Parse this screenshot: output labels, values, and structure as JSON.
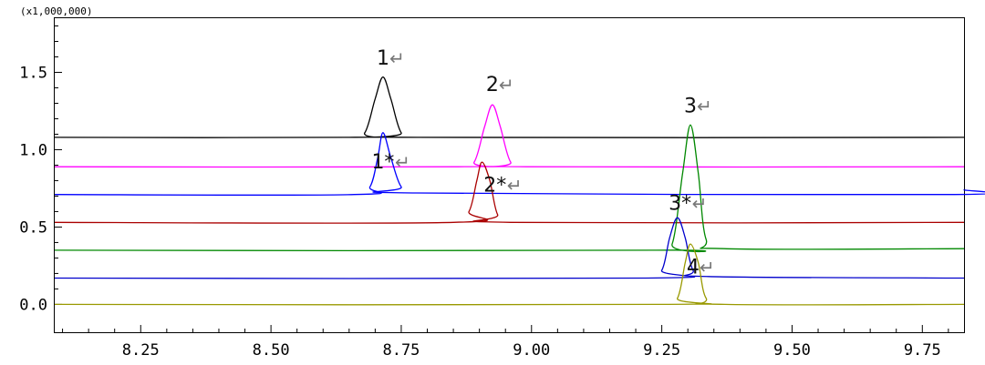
{
  "chart_data": {
    "type": "line",
    "title": "",
    "xlabel": "",
    "ylabel": "",
    "y_multiplier_label": "(x1,000,000)",
    "xlim": [
      8.085,
      9.83
    ],
    "ylim": [
      -0.18,
      1.85
    ],
    "x_ticks": [
      8.25,
      8.5,
      8.75,
      9.0,
      9.25,
      9.5,
      9.75
    ],
    "x_tick_labels": [
      "8.25",
      "8.50",
      "8.75",
      "9.00",
      "9.25",
      "9.50",
      "9.75"
    ],
    "y_ticks": [
      0.0,
      0.5,
      1.0,
      1.5
    ],
    "y_tick_labels": [
      "0.0",
      "0.5",
      "1.0",
      "1.5"
    ],
    "grid": false,
    "legend": "none",
    "series": [
      {
        "color": "#000000",
        "x": [
          8.085,
          8.65,
          8.68,
          8.7,
          8.715,
          8.73,
          8.75,
          8.78,
          9.83
        ],
        "y": [
          1.08,
          1.08,
          1.11,
          1.33,
          1.47,
          1.33,
          1.11,
          1.08,
          1.08
        ]
      },
      {
        "color": "#ff00ff",
        "x": [
          8.085,
          8.86,
          8.89,
          8.91,
          8.925,
          8.94,
          8.96,
          8.99,
          9.83
        ],
        "y": [
          0.89,
          0.89,
          0.92,
          1.15,
          1.29,
          1.15,
          0.92,
          0.89,
          0.89
        ]
      },
      {
        "color": "#0000ff",
        "x": [
          8.085,
          8.66,
          8.69,
          8.705,
          8.715,
          8.73,
          8.75,
          8.78,
          9.8,
          9.83
        ],
        "y": [
          0.71,
          0.71,
          0.76,
          0.95,
          1.11,
          0.95,
          0.76,
          0.72,
          0.71,
          0.74
        ]
      },
      {
        "color": "#aa0000",
        "x": [
          8.085,
          8.85,
          8.88,
          8.895,
          8.905,
          8.92,
          8.935,
          8.96,
          9.83
        ],
        "y": [
          0.53,
          0.53,
          0.6,
          0.8,
          0.92,
          0.8,
          0.58,
          0.53,
          0.53
        ]
      },
      {
        "color": "#008800",
        "x": [
          8.085,
          9.24,
          9.27,
          9.29,
          9.305,
          9.32,
          9.335,
          9.37,
          9.83
        ],
        "y": [
          0.35,
          0.35,
          0.39,
          0.85,
          1.16,
          0.85,
          0.42,
          0.36,
          0.36
        ]
      },
      {
        "color": "#0000cc",
        "x": [
          8.085,
          9.22,
          9.25,
          9.265,
          9.28,
          9.295,
          9.31,
          9.34,
          9.83
        ],
        "y": [
          0.17,
          0.17,
          0.22,
          0.43,
          0.56,
          0.43,
          0.22,
          0.18,
          0.17
        ]
      },
      {
        "color": "#999900",
        "x": [
          8.085,
          9.25,
          9.28,
          9.295,
          9.305,
          9.32,
          9.335,
          9.37,
          9.83
        ],
        "y": [
          0.0,
          0.0,
          0.04,
          0.27,
          0.39,
          0.27,
          0.04,
          0.0,
          0.0
        ]
      }
    ],
    "annotations": [
      {
        "text": "1",
        "marker": "↵",
        "x": 8.715,
        "y": 1.55
      },
      {
        "text": "2",
        "marker": "↵",
        "x": 8.925,
        "y": 1.38
      },
      {
        "text": "3",
        "marker": "↵",
        "x": 9.305,
        "y": 1.24
      },
      {
        "text": "1*",
        "marker": "↵",
        "x": 8.715,
        "y": 0.88
      },
      {
        "text": "2*",
        "marker": "↵",
        "x": 8.93,
        "y": 0.73
      },
      {
        "text": "3*",
        "marker": "↵",
        "x": 9.285,
        "y": 0.61
      },
      {
        "text": "4",
        "marker": "↵",
        "x": 9.31,
        "y": 0.2
      }
    ]
  }
}
